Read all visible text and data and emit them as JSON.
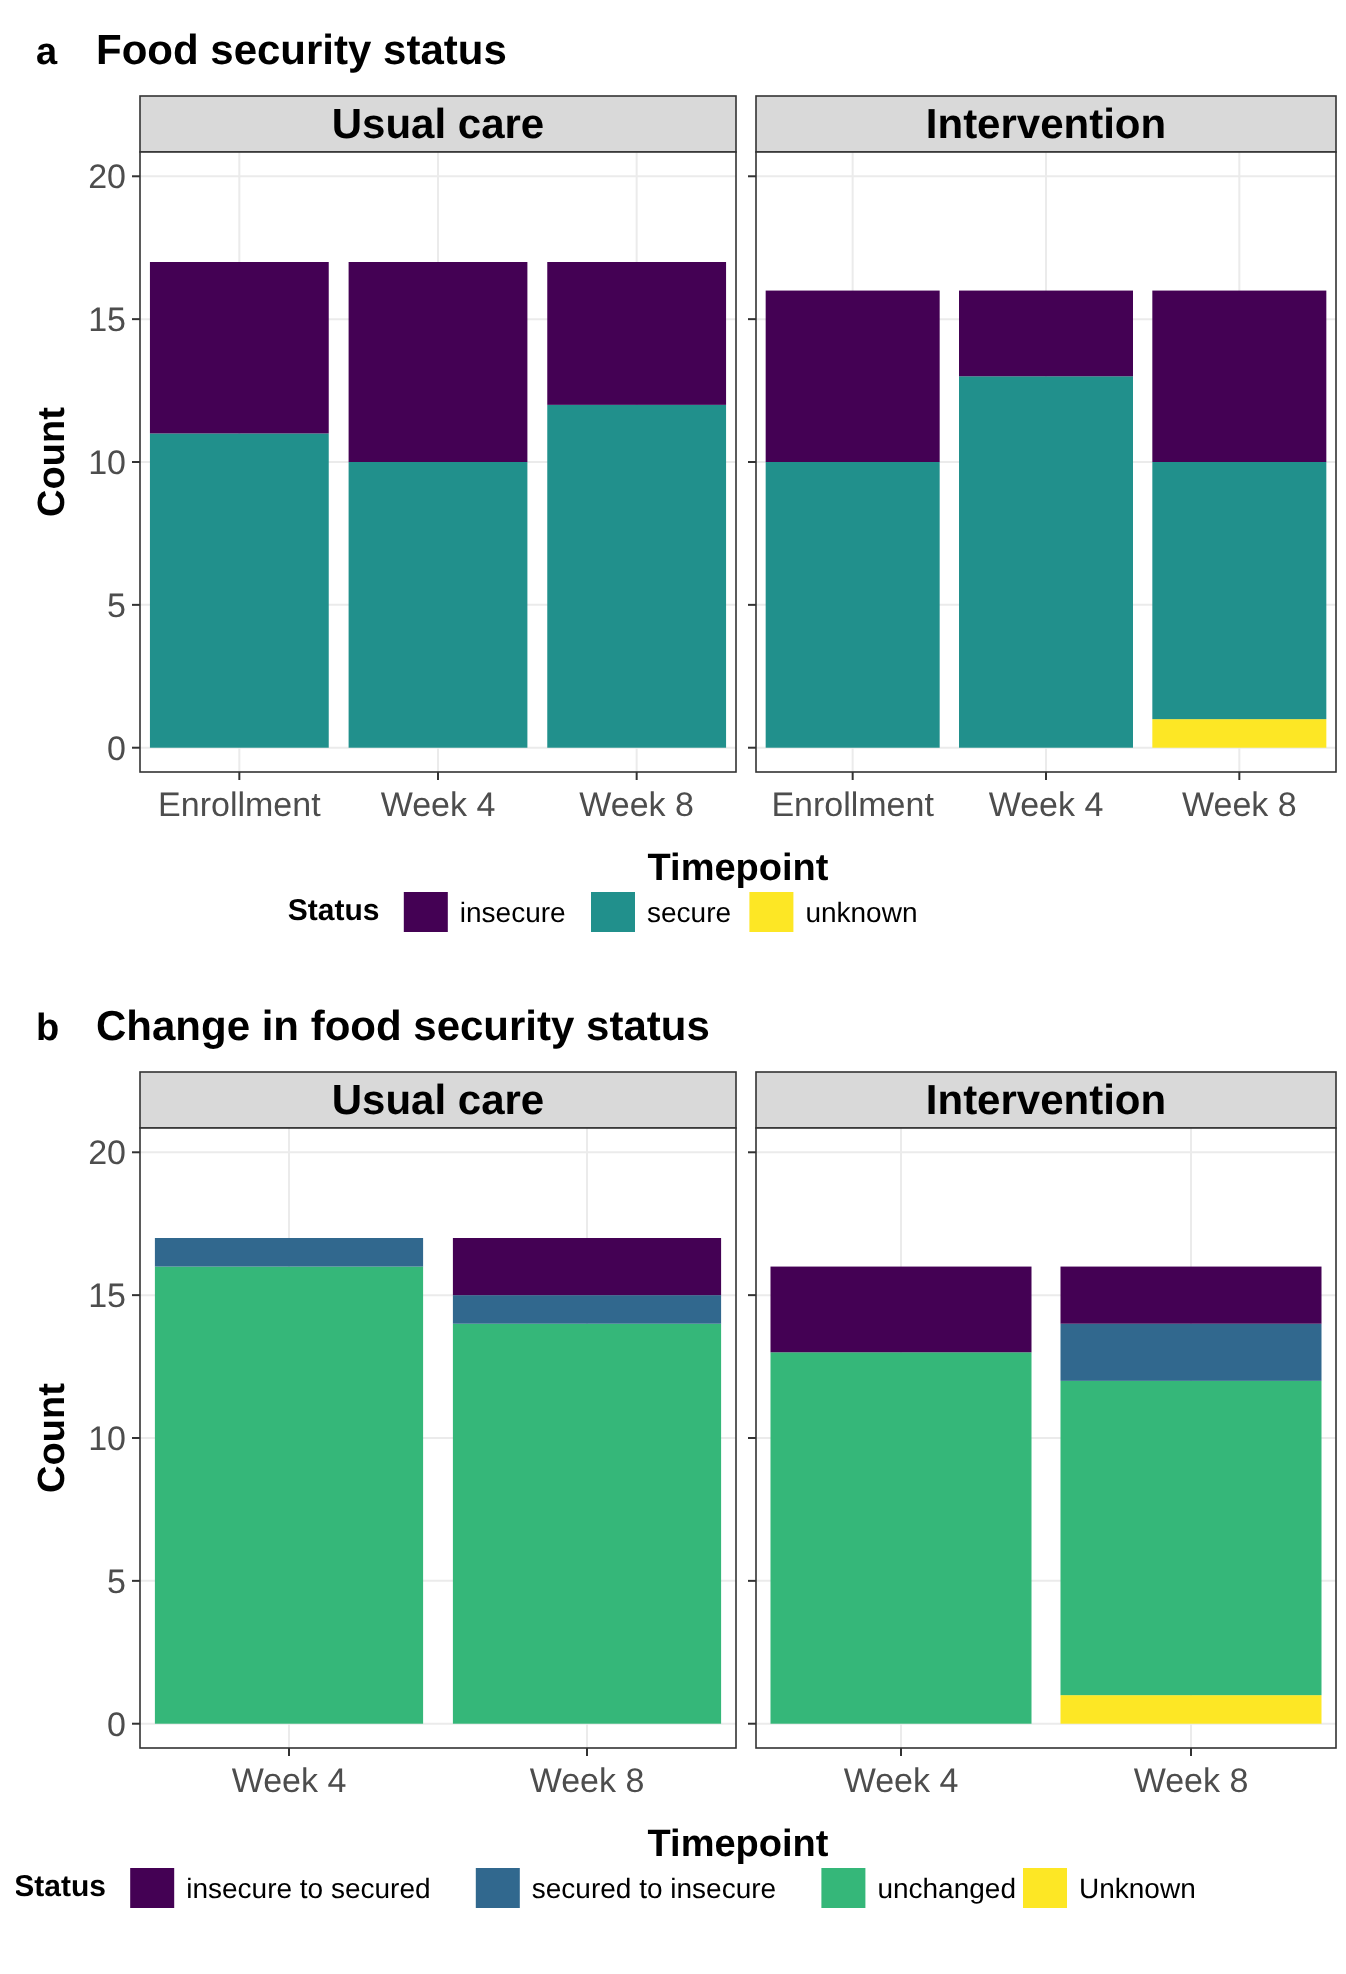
{
  "chart_data": [
    {
      "type": "bar",
      "title": "Food security status",
      "annotations": [
        "a"
      ],
      "subtitle": "Usual care",
      "xlabel": "Timepoint",
      "ylabel": "Count",
      "legend_title": "Status",
      "legend": "bottom",
      "stacked": true,
      "grid": true,
      "categories": [
        "Enrollment",
        "Week 4",
        "Week 8"
      ],
      "ylim": [
        -0.85,
        20.85
      ],
      "yticks": [
        0,
        5,
        10,
        15,
        20
      ],
      "series": [
        {
          "name": "unknown",
          "color": "#fde725",
          "values": [
            0,
            0,
            0
          ]
        },
        {
          "name": "secure",
          "color": "#21908c",
          "values": [
            11,
            10,
            12
          ]
        },
        {
          "name": "insecure",
          "color": "#440154",
          "values": [
            6,
            7,
            5
          ]
        }
      ]
    },
    {
      "type": "bar",
      "subtitle": "Intervention",
      "stacked": true,
      "grid": true,
      "tick_labels": "x",
      "categories": [
        "Enrollment",
        "Week 4",
        "Week 8"
      ],
      "ylim": [
        -0.85,
        20.85
      ],
      "yticks": [
        0,
        5,
        10,
        15,
        20
      ],
      "series": [
        {
          "color": "#fde725",
          "values": [
            0,
            0,
            1
          ]
        },
        {
          "color": "#21908c",
          "values": [
            10,
            13,
            9
          ]
        },
        {
          "color": "#440154",
          "values": [
            6,
            3,
            6
          ]
        }
      ]
    },
    {
      "type": "bar",
      "title": "Change in food security status",
      "annotations": [
        "b"
      ],
      "subtitle": "Usual care",
      "xlabel": "Timepoint",
      "ylabel": "Count",
      "legend_title": "Status",
      "legend": "bottom",
      "stacked": true,
      "grid": true,
      "categories": [
        "Week 4",
        "Week 8"
      ],
      "ylim": [
        -0.85,
        20.85
      ],
      "yticks": [
        0,
        5,
        10,
        15,
        20
      ],
      "series": [
        {
          "name": "Unknown",
          "color": "#fde725",
          "values": [
            0,
            0
          ]
        },
        {
          "name": "unchanged",
          "color": "#35b779",
          "values": [
            16,
            14
          ]
        },
        {
          "name": "secured to insecure",
          "color": "#31688e",
          "values": [
            1,
            1
          ]
        },
        {
          "name": "insecure to secured",
          "color": "#440154",
          "values": [
            0,
            2
          ]
        }
      ]
    },
    {
      "type": "bar",
      "subtitle": "Intervention",
      "stacked": true,
      "grid": true,
      "tick_labels": "x",
      "categories": [
        "Week 4",
        "Week 8"
      ],
      "ylim": [
        -0.85,
        20.85
      ],
      "yticks": [
        0,
        5,
        10,
        15,
        20
      ],
      "series": [
        {
          "color": "#fde725",
          "values": [
            0,
            1
          ]
        },
        {
          "color": "#35b779",
          "values": [
            13,
            11
          ]
        },
        {
          "color": "#31688e",
          "values": [
            0,
            2
          ]
        },
        {
          "color": "#440154",
          "values": [
            3,
            2
          ]
        }
      ]
    }
  ]
}
